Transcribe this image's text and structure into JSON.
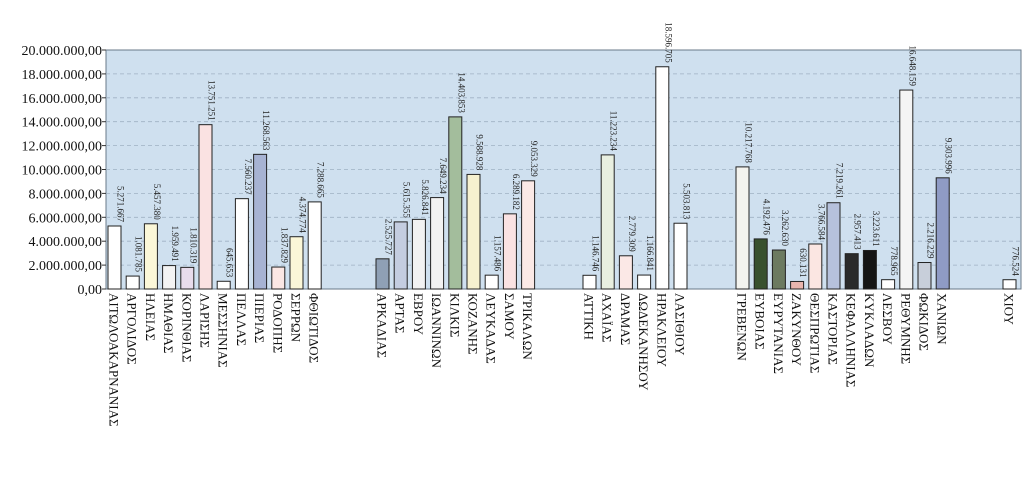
{
  "chart_data": {
    "type": "bar",
    "title": "",
    "xlabel": "",
    "ylabel": "",
    "ylim": [
      0,
      20000000
    ],
    "y_ticks": [
      "0,00",
      "2.000.000,00",
      "4.000.000,00",
      "6.000.000,00",
      "8.000.000,00",
      "10.000.000,00",
      "12.000.000,00",
      "14.000.000,00",
      "16.000.000,00",
      "18.000.000,00",
      "20.000.000,00"
    ],
    "y_tick_values": [
      0,
      2000000,
      4000000,
      6000000,
      8000000,
      10000000,
      12000000,
      14000000,
      16000000,
      18000000,
      20000000
    ],
    "grid": true,
    "legend": "none",
    "plot_background": "#cfe0ef",
    "groups": [
      {
        "bars": [
          {
            "category": "ΑΙΤΩΛΟΑΚΑΡΝΑΝΙΑΣ",
            "value": 5271667,
            "label": "5.271.667",
            "color": "#ffffff"
          },
          {
            "category": "ΑΡΓΟΛΙΔΟΣ",
            "value": 1081785,
            "label": "1.081.785",
            "color": "#ffffff"
          },
          {
            "category": "ΗΛΕΙΑΣ",
            "value": 5457380,
            "label": "5.457.380",
            "color": "#fbf7d8"
          },
          {
            "category": "ΗΜΑΘΙΑΣ",
            "value": 1959491,
            "label": "1.959.491",
            "color": "#f3f3f3"
          },
          {
            "category": "ΚΟΡΙΝΘΙΑΣ",
            "value": 1810319,
            "label": "1.810.319",
            "color": "#e8dcec"
          },
          {
            "category": "ΛΑΡΙΣΗΣ",
            "value": 13751251,
            "label": "13.751.251",
            "color": "#fae2e2"
          },
          {
            "category": "ΜΕΣΣΗΝΙΑΣ",
            "value": 645653,
            "label": "645.653",
            "color": "#ffffff"
          },
          {
            "category": "ΠΕΛΛΑΣ",
            "value": 7560237,
            "label": "7.560.237",
            "color": "#ffffff"
          },
          {
            "category": "ΠΙΕΡΙΑΣ",
            "value": 11268563,
            "label": "11.268.563",
            "color": "#a7b3d3"
          },
          {
            "category": "ΡΟΔΟΠΗΣ",
            "value": 1837829,
            "label": "1.837.829",
            "color": "#fbe7e4"
          },
          {
            "category": "ΣΕΡΡΩΝ",
            "value": 4374774,
            "label": "4.374.774",
            "color": "#fbf7d8"
          },
          {
            "category": "ΦΘΙΩΤΙΔΟΣ",
            "value": 7288665,
            "label": "7.288.665",
            "color": "#ffffff"
          }
        ]
      },
      {
        "bars": [
          {
            "category": "ΑΡΚΑΔΙΑΣ",
            "value": 2525727,
            "label": "2.525.727",
            "color": "#8fa0b5"
          },
          {
            "category": "ΑΡΤΑΣ",
            "value": 5615355,
            "label": "5.615.355",
            "color": "#c4cde0"
          },
          {
            "category": "ΕΒΡΟΥ",
            "value": 5826841,
            "label": "5.826.841",
            "color": "#f2f2f2"
          },
          {
            "category": "ΙΩΑΝΝΙΝΩΝ",
            "value": 7649234,
            "label": "7.649.234",
            "color": "#f2f2f2"
          },
          {
            "category": "ΚΙΛΚΙΣ",
            "value": 14403853,
            "label": "14.403.853",
            "color": "#a3bd9c"
          },
          {
            "category": "ΚΟΖΑΝΗΣ",
            "value": 9588928,
            "label": "9.588.928",
            "color": "#f6f1cf"
          },
          {
            "category": "ΛΕΥΚΑΔΑΣ",
            "value": 1157486,
            "label": "1.157.486",
            "color": "#ffffff"
          },
          {
            "category": "ΣΑΜΟΥ",
            "value": 6289182,
            "label": "6.289.182",
            "color": "#fae2e2"
          },
          {
            "category": "ΤΡΙΚΑΛΩΝ",
            "value": 9053329,
            "label": "9.053.329",
            "color": "#fbe9e6"
          }
        ]
      },
      {
        "bars": [
          {
            "category": "ΑΤΤΙΚΗ",
            "value": 1146746,
            "label": "1.146.746",
            "color": "#ffffff"
          },
          {
            "category": "ΑΧΑΪΑΣ",
            "value": 11223234,
            "label": "11.223.234",
            "color": "#e8efe0"
          },
          {
            "category": "ΔΡΑΜΑΣ",
            "value": 2779309,
            "label": "2.779.309",
            "color": "#fbe8e6"
          },
          {
            "category": "ΔΩΔΕΚΑΝΗΣΟΥ",
            "value": 1166841,
            "label": "1.166.841",
            "color": "#ffffff"
          },
          {
            "category": "ΗΡΑΚΛΕΙΟΥ",
            "value": 18596705,
            "label": "18.596.705",
            "color": "#ffffff"
          },
          {
            "category": "ΛΑΣΙΘΙΟΥ",
            "value": 5503813,
            "label": "5.503.813",
            "color": "#ffffff"
          }
        ]
      },
      {
        "bars": [
          {
            "category": "ΓΡΕΒΕΝΩΝ",
            "value": 10217768,
            "label": "10.217.768",
            "color": "#f3f3ee"
          },
          {
            "category": "ΕΥΒΟΙΑΣ",
            "value": 4192476,
            "label": "4.192.476",
            "color": "#38512e"
          },
          {
            "category": "ΕΥΡΥΤΑΝΙΑΣ",
            "value": 3262630,
            "label": "3.262.630",
            "color": "#6c7a60"
          },
          {
            "category": "ΖΑΚΥΝΘΟΥ",
            "value": 630131,
            "label": "630.131",
            "color": "#e9b5ae"
          },
          {
            "category": "ΘΕΣΠΡΩΤΙΑΣ",
            "value": 3766584,
            "label": "3.766.584",
            "color": "#fbe6e2"
          },
          {
            "category": "ΚΑΣΤΟΡΙΑΣ",
            "value": 7219261,
            "label": "7.219.261",
            "color": "#b6c1dc"
          },
          {
            "category": "ΚΕΦΑΛΛΗΝΙΑΣ",
            "value": 2957413,
            "label": "2.957.413",
            "color": "#2a2a2a"
          },
          {
            "category": "ΚΥΚΛΑΔΩΝ",
            "value": 3223611,
            "label": "3.223.611",
            "color": "#151515"
          },
          {
            "category": "ΛΕΣΒΟΥ",
            "value": 778965,
            "label": "778.965",
            "color": "#ffffff"
          },
          {
            "category": "ΡΕΘΥΜΝΗΣ",
            "value": 16648159,
            "label": "16.648.159",
            "color": "#f4f4f4"
          },
          {
            "category": "ΦΩΚΙΔΟΣ",
            "value": 2216229,
            "label": "2.216.229",
            "color": "#c8cfda"
          },
          {
            "category": "ΧΑΝΙΩΝ",
            "value": 9303996,
            "label": "9.303.996",
            "color": "#8f9bc5"
          }
        ]
      },
      {
        "bars": [
          {
            "category": "ΧΙΟΥ",
            "value": 776524,
            "label": "776.524",
            "color": "#ffffff"
          }
        ]
      }
    ]
  }
}
